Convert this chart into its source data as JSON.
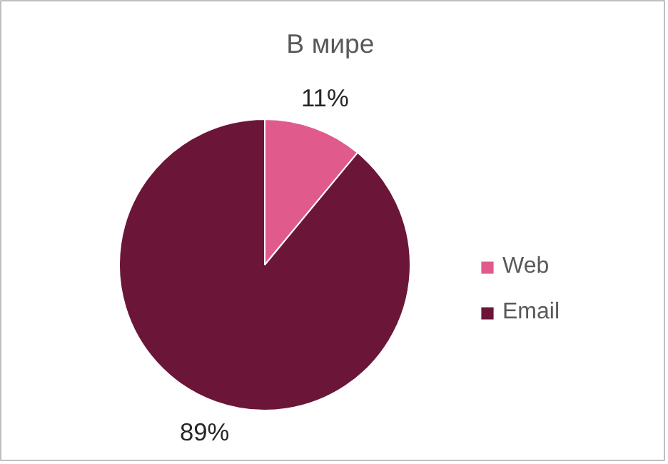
{
  "chart_data": {
    "type": "pie",
    "title": "В мире",
    "categories": [
      "Web",
      "Email"
    ],
    "values": [
      11,
      89
    ],
    "colors": [
      "#e05b8c",
      "#6b1638"
    ],
    "value_labels": [
      "11%",
      "89%"
    ],
    "legend": "right"
  }
}
